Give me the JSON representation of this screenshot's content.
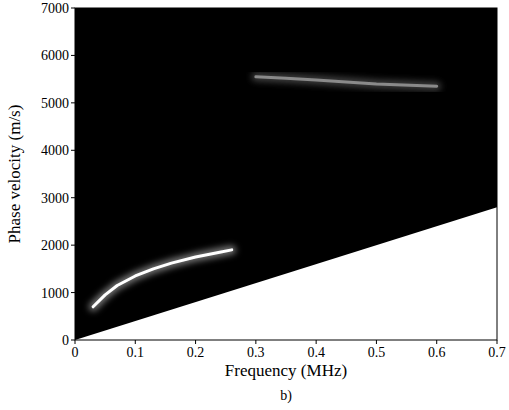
{
  "chart_data": {
    "type": "dispersion",
    "x_label": "Frequency (MHz)",
    "y_label": "Phase velocity (m/s)",
    "annotations": [
      "b)"
    ],
    "xlim": [
      0,
      0.7
    ],
    "ylim": [
      0,
      7000
    ],
    "xticks": [
      0,
      0.1,
      0.2,
      0.3,
      0.4,
      0.5,
      0.6,
      0.7
    ],
    "yticks": [
      0,
      1000,
      2000,
      3000,
      4000,
      5000,
      6000,
      7000
    ],
    "grid": false,
    "series": [
      {
        "type": "area",
        "color": "#ffffff",
        "x": [
          0,
          0.7
        ],
        "values": [
          0,
          2800
        ]
      },
      {
        "type": "line",
        "color": "#ffffff",
        "x": [
          0.03,
          0.05,
          0.07,
          0.1,
          0.13,
          0.16,
          0.2,
          0.24,
          0.26
        ],
        "values": [
          700,
          950,
          1150,
          1350,
          1500,
          1620,
          1750,
          1850,
          1900
        ]
      },
      {
        "type": "line",
        "color": "#8a8a8a",
        "x": [
          0.3,
          0.35,
          0.4,
          0.5,
          0.6
        ],
        "values": [
          5550,
          5520,
          5480,
          5400,
          5350
        ]
      }
    ]
  }
}
